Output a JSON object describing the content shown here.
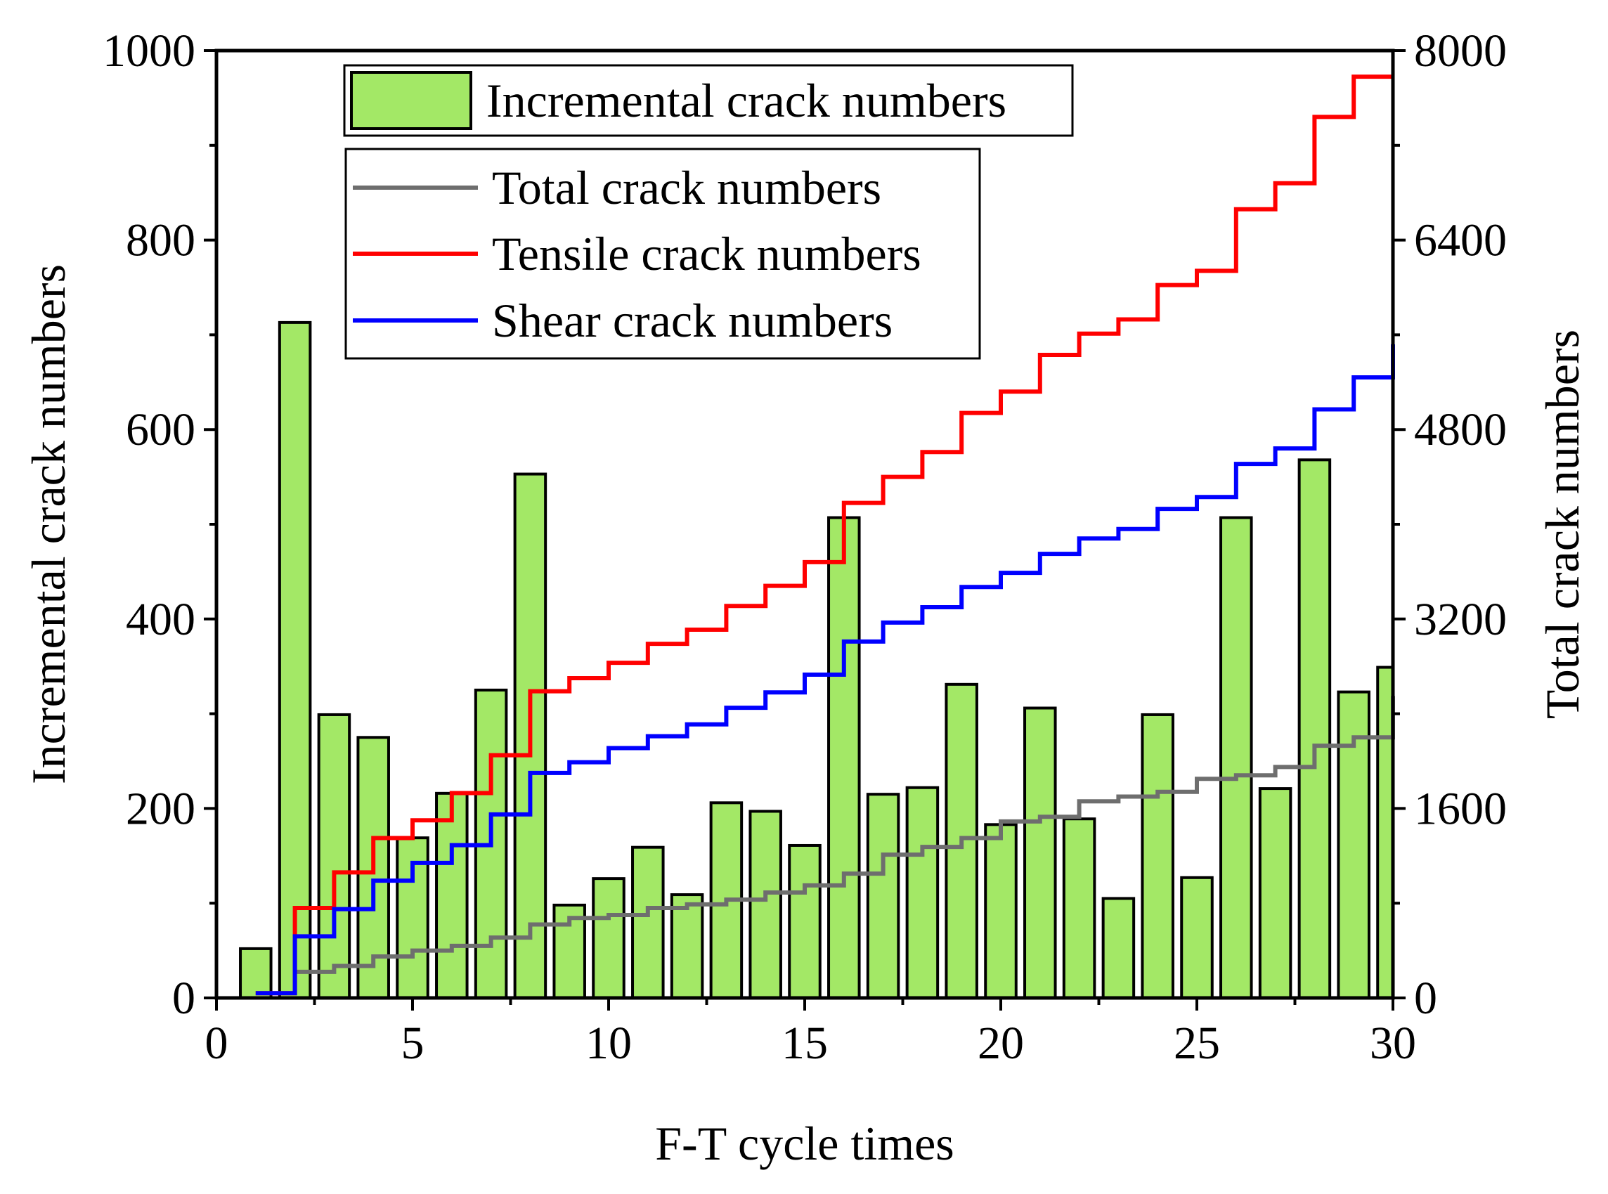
{
  "chart_data": {
    "type": "bar",
    "title": "",
    "xlabel": "F-T cycle times",
    "ylabel_left": "Incremental crack numbers",
    "ylabel_right": "Total crack numbers",
    "xlim": [
      0,
      30
    ],
    "ylim_left": [
      0,
      1000
    ],
    "ylim_right": [
      0,
      8000
    ],
    "x_ticks": [
      0,
      5,
      10,
      15,
      20,
      25,
      30
    ],
    "y_left_ticks": [
      0,
      200,
      400,
      600,
      800,
      1000
    ],
    "y_right_ticks": [
      0,
      1600,
      3200,
      4800,
      6400,
      8000
    ],
    "grid": false,
    "legend_position": "top-left",
    "bars": {
      "name": "Incremental crack numbers",
      "color": "#a3e866",
      "x": [
        1,
        2,
        3,
        4,
        5,
        6,
        7,
        8,
        9,
        10,
        11,
        12,
        13,
        14,
        15,
        16,
        17,
        18,
        19,
        20,
        21,
        22,
        23,
        24,
        25,
        26,
        27,
        28,
        29,
        30
      ],
      "values": [
        52,
        713,
        299,
        275,
        169,
        216,
        325,
        553,
        98,
        126,
        159,
        109,
        206,
        197,
        161,
        507,
        215,
        222,
        331,
        183,
        306,
        189,
        105,
        299,
        127,
        507,
        221,
        568,
        323,
        349
      ]
    },
    "series": [
      {
        "name": "Total crack numbers",
        "color": "#6e6e6e",
        "x": [
          2,
          3,
          4,
          5,
          6,
          7,
          8,
          9,
          10,
          11,
          12,
          13,
          14,
          15,
          16,
          17,
          18,
          19,
          20,
          21,
          22,
          23,
          24,
          25,
          26,
          27,
          28,
          29,
          30
        ],
        "values": [
          220,
          270,
          350,
          400,
          440,
          510,
          620,
          675,
          700,
          760,
          790,
          830,
          890,
          950,
          1050,
          1210,
          1275,
          1350,
          1490,
          1530,
          1660,
          1700,
          1740,
          1850,
          1880,
          1950,
          2130,
          2200,
          2550
        ]
      },
      {
        "name": "Tensile crack numbers",
        "color": "#ff0000",
        "x": [
          1,
          2,
          3,
          4,
          5,
          6,
          7,
          8,
          9,
          10,
          11,
          12,
          13,
          14,
          15,
          16,
          17,
          18,
          19,
          20,
          21,
          22,
          23,
          24,
          25,
          26,
          27,
          28,
          29,
          30
        ],
        "values": [
          40,
          760,
          1060,
          1350,
          1500,
          1730,
          2050,
          2590,
          2700,
          2830,
          2990,
          3110,
          3310,
          3480,
          3680,
          4180,
          4400,
          4610,
          4940,
          5120,
          5430,
          5610,
          5730,
          6020,
          6140,
          6660,
          6880,
          7440,
          7780,
          7780
        ]
      },
      {
        "name": "Shear crack numbers",
        "color": "#0000ff",
        "x": [
          1,
          2,
          3,
          4,
          5,
          6,
          7,
          8,
          9,
          10,
          11,
          12,
          13,
          14,
          15,
          16,
          17,
          18,
          19,
          20,
          21,
          22,
          23,
          24,
          25,
          26,
          27,
          28,
          29,
          30
        ],
        "values": [
          40,
          520,
          750,
          990,
          1140,
          1290,
          1550,
          1900,
          1990,
          2110,
          2210,
          2310,
          2450,
          2580,
          2730,
          3010,
          3170,
          3300,
          3470,
          3590,
          3750,
          3880,
          3960,
          4130,
          4230,
          4510,
          4640,
          4970,
          5240,
          5520
        ]
      }
    ]
  }
}
